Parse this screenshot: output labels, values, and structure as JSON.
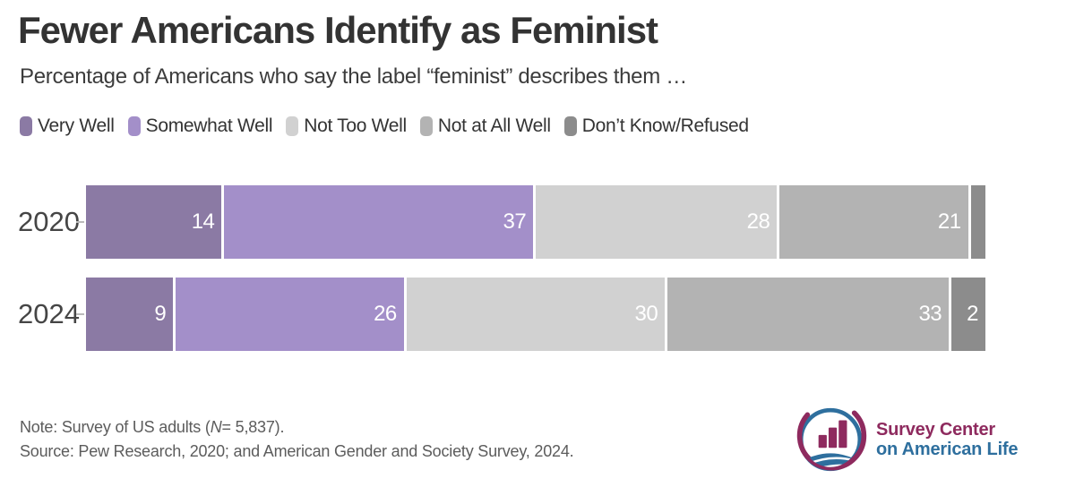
{
  "title": "Fewer Americans Identify as Feminist",
  "subtitle": "Percentage of Americans who say the label “feminist” describes them …",
  "legend": [
    {
      "label": "Very Well",
      "color": "#8b7aa4"
    },
    {
      "label": "Somewhat Well",
      "color": "#a38fc9"
    },
    {
      "label": "Not Too Well",
      "color": "#d1d1d1"
    },
    {
      "label": "Not at All Well",
      "color": "#b3b3b3"
    },
    {
      "label": "Don’t Know/Refused",
      "color": "#8c8c8c"
    }
  ],
  "chart_data": {
    "type": "bar",
    "orientation": "horizontal-stacked",
    "categories": [
      "2020",
      "2024"
    ],
    "series": [
      {
        "name": "Very Well",
        "color": "#8b7aa4",
        "values": [
          14,
          9
        ],
        "labels": [
          "14",
          "9"
        ]
      },
      {
        "name": "Somewhat Well",
        "color": "#a38fc9",
        "values": [
          37,
          26
        ],
        "labels": [
          "37",
          "26"
        ]
      },
      {
        "name": "Not Too Well",
        "color": "#d1d1d1",
        "values": [
          28,
          30
        ],
        "labels": [
          "28",
          "30"
        ]
      },
      {
        "name": "Not at All Well",
        "color": "#b3b3b3",
        "values": [
          21,
          33
        ],
        "labels": [
          "21",
          "33"
        ]
      },
      {
        "name": "Don’t Know/Refused",
        "color": "#8c8c8c",
        "values": [
          1,
          2
        ],
        "labels": [
          "",
          "2"
        ]
      }
    ],
    "xlim": [
      0,
      100
    ],
    "value_labels_shown": true,
    "legend_position": "top",
    "grid": false
  },
  "footer": {
    "note_prefix": "Note: Survey of US adults (",
    "note_n": "N",
    "note_suffix": "= 5,837).",
    "source": "Source: Pew Research, 2020; and American Gender and Society Survey, 2024."
  },
  "logo": {
    "line1": "Survey Center",
    "line2": "on American Life",
    "maroon": "#8e2a5e",
    "blue": "#2e6f9e"
  }
}
